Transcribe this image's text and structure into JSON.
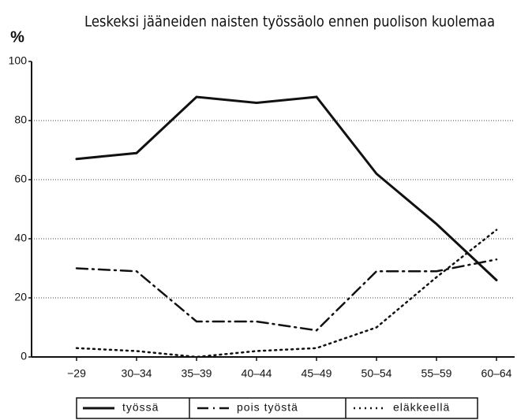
{
  "chart_data": {
    "type": "line",
    "title": "Leskeksi jääneiden naisten työssäolo ennen puolison kuolemaa",
    "y_label": "%",
    "categories": [
      "−29",
      "30–34",
      "35–39",
      "40–44",
      "45–49",
      "50–54",
      "55–59",
      "60–64"
    ],
    "series": [
      {
        "name": "työssä",
        "color": "#111111",
        "dash": "solid",
        "values": [
          67,
          69,
          88,
          86,
          88,
          62,
          45,
          26
        ]
      },
      {
        "name": "pois työstä",
        "color": "#111111",
        "dash": "dashdot",
        "values": [
          30,
          29,
          12,
          12,
          9,
          29,
          29,
          33
        ]
      },
      {
        "name": "eläkkeellä",
        "color": "#111111",
        "dash": "dotted",
        "values": [
          3,
          2,
          0,
          2,
          3,
          10,
          27,
          43
        ]
      }
    ],
    "ylim": [
      0,
      100
    ],
    "yticks": [
      0,
      20,
      40,
      60,
      80,
      100
    ],
    "grid": true,
    "legend": "bottom"
  }
}
